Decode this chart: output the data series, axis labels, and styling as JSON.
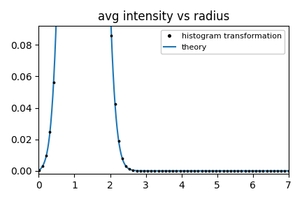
{
  "title": "avg intensity vs radius",
  "xlim": [
    0,
    7
  ],
  "ylim": [
    -0.002,
    0.092
  ],
  "x_ticks": [
    0,
    1,
    2,
    3,
    4,
    5,
    6,
    7
  ],
  "y_ticks": [
    0.0,
    0.02,
    0.04,
    0.06,
    0.08
  ],
  "theory_color": "#1f77b4",
  "dots_color": "black",
  "legend_dot_label": "histogram transformation",
  "legend_line_label": "theory",
  "r0": 1.2,
  "sigma": 0.35,
  "n_dots": 70,
  "x_max": 7.0,
  "figsize": [
    4.32,
    2.88
  ],
  "dpi": 100,
  "title_fontsize": 12
}
